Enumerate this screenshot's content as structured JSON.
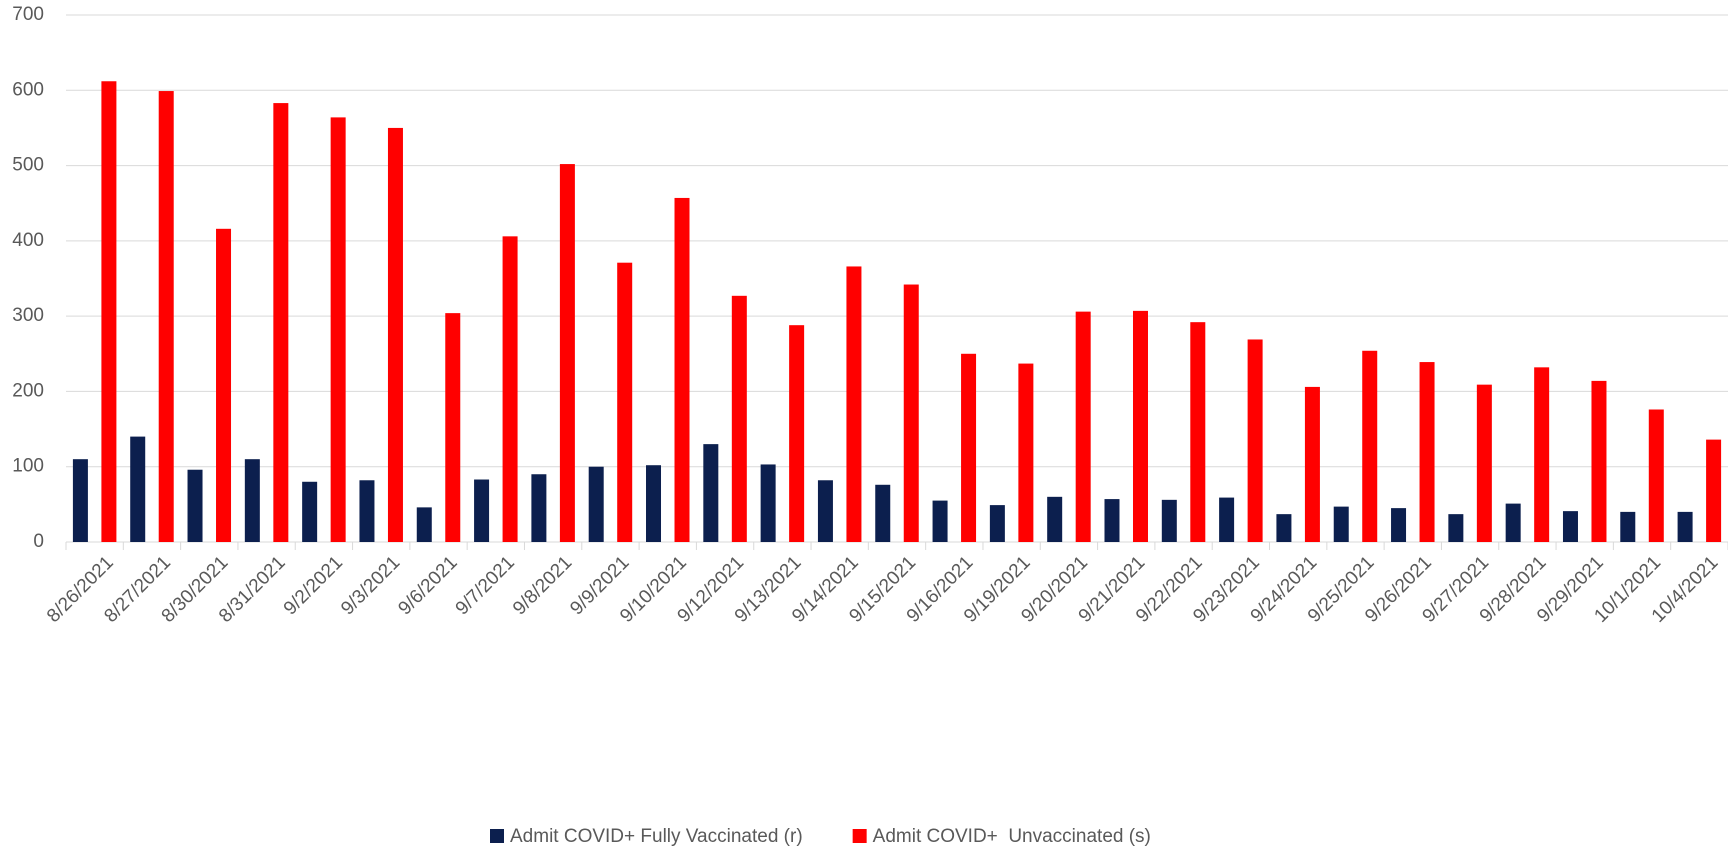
{
  "chart_data": {
    "type": "bar",
    "categories": [
      "8/26/2021",
      "8/27/2021",
      "8/30/2021",
      "8/31/2021",
      "9/2/2021",
      "9/3/2021",
      "9/6/2021",
      "9/7/2021",
      "9/8/2021",
      "9/9/2021",
      "9/10/2021",
      "9/12/2021",
      "9/13/2021",
      "9/14/2021",
      "9/15/2021",
      "9/16/2021",
      "9/19/2021",
      "9/20/2021",
      "9/21/2021",
      "9/22/2021",
      "9/23/2021",
      "9/24/2021",
      "9/25/2021",
      "9/26/2021",
      "9/27/2021",
      "9/28/2021",
      "9/29/2021",
      "10/1/2021",
      "10/4/2021"
    ],
    "series": [
      {
        "name": "Admit COVID+ Fully Vaccinated (r)",
        "color": "#0c1f4e",
        "values": [
          110,
          140,
          96,
          110,
          80,
          82,
          46,
          83,
          90,
          100,
          102,
          130,
          103,
          82,
          76,
          55,
          49,
          60,
          57,
          56,
          59,
          37,
          47,
          45,
          37,
          51,
          41,
          40,
          40
        ]
      },
      {
        "name": "Admit COVID+  Unvaccinated (s)",
        "color": "#ff0000",
        "values": [
          612,
          599,
          416,
          583,
          564,
          550,
          304,
          406,
          502,
          371,
          457,
          327,
          288,
          366,
          342,
          250,
          237,
          306,
          307,
          292,
          269,
          206,
          254,
          239,
          209,
          232,
          214,
          176,
          136
        ]
      }
    ],
    "ylim": [
      0,
      700
    ],
    "yticks": [
      0,
      100,
      200,
      300,
      400,
      500,
      600,
      700
    ],
    "grid": true,
    "legend": "bottom"
  }
}
